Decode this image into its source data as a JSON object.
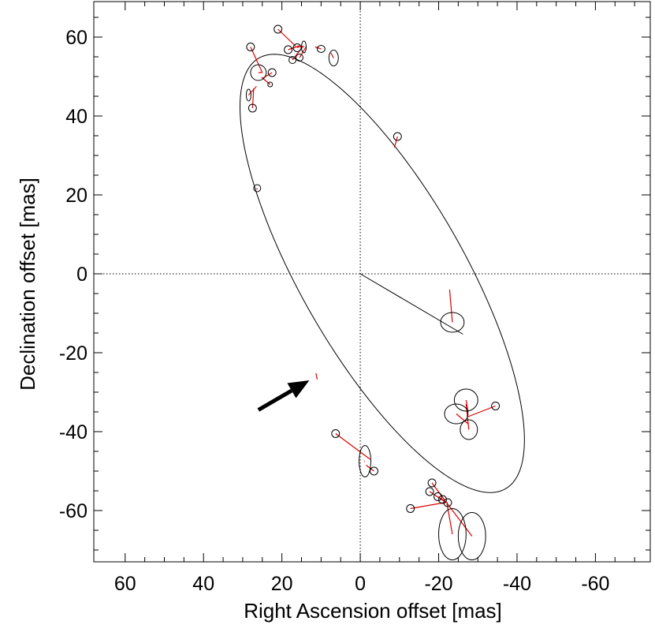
{
  "chart_data": {
    "type": "scatter",
    "title": "",
    "xlabel": "Right Ascension offset [mas]",
    "ylabel": "Declination offset [mas]",
    "xlim": [
      68,
      -74
    ],
    "ylim": [
      -73,
      69
    ],
    "x_reversed": true,
    "x_ticks": [
      60,
      40,
      20,
      0,
      -20,
      -40,
      -60
    ],
    "x_tick_labels": [
      "60",
      "40",
      "20",
      "0",
      "-20",
      "-40",
      "-60"
    ],
    "y_ticks": [
      60,
      40,
      20,
      0,
      -20,
      -40,
      -60
    ],
    "y_tick_labels": [
      "60",
      "40",
      "20",
      "0",
      "-20",
      "-40",
      "-60"
    ],
    "grid": false,
    "zero_lines": "dotted",
    "colors": {
      "orbit": "#000000",
      "residual": "#dd0000",
      "arrow": "#000000"
    },
    "orbit_ellipse": {
      "center": [
        -5.6,
        0.1
      ],
      "semi_major": 63.0,
      "semi_minor": 20.8,
      "position_angle_deg": 30.0
    },
    "primary_to_periastron_line": {
      "from": [
        0,
        0
      ],
      "to": [
        -26.2,
        -15.3
      ]
    },
    "observations": [
      {
        "x": 21.0,
        "y": 62.0,
        "model_x": 16.5,
        "model_y": 57.7,
        "ex": 1.0,
        "ey": 1.0
      },
      {
        "x": 18.4,
        "y": 56.8,
        "model_x": 15.5,
        "model_y": 57.8,
        "ex": 1.0,
        "ey": 1.0
      },
      {
        "x": 16.1,
        "y": 57.3,
        "model_x": 15.0,
        "model_y": 57.8,
        "ex": 1.0,
        "ey": 1.0
      },
      {
        "x": 14.4,
        "y": 57.5,
        "model_x": 14.8,
        "model_y": 57.7,
        "ex": 0.4,
        "ey": 1.5
      },
      {
        "x": 17.3,
        "y": 54.2,
        "model_x": 14.5,
        "model_y": 57.8,
        "ex": 0.9,
        "ey": 0.9
      },
      {
        "x": 15.5,
        "y": 54.8,
        "model_x": 13.8,
        "model_y": 57.6,
        "ex": 0.9,
        "ey": 0.9
      },
      {
        "x": 10.0,
        "y": 57.0,
        "model_x": 11.5,
        "model_y": 57.5,
        "ex": 1.0,
        "ey": 0.9
      },
      {
        "x": 6.8,
        "y": 54.7,
        "model_x": 7.5,
        "model_y": 56.0,
        "ex": 1.2,
        "ey": 2.0
      },
      {
        "x": 28.0,
        "y": 57.5,
        "model_x": 25.0,
        "model_y": 51.0,
        "ex": 1.0,
        "ey": 1.0
      },
      {
        "x": 26.0,
        "y": 51.0,
        "model_x": 25.0,
        "model_y": 51.0,
        "ex": 2.0,
        "ey": 2.0
      },
      {
        "x": 22.5,
        "y": 51.0,
        "model_x": 25.0,
        "model_y": 49.5,
        "ex": 1.0,
        "ey": 1.0
      },
      {
        "x": 23.0,
        "y": 48.0,
        "model_x": 25.2,
        "model_y": 49.8,
        "ex": 0.6,
        "ey": 0.6
      },
      {
        "x": 28.5,
        "y": 45.3,
        "model_x": 26.5,
        "model_y": 47.5,
        "ex": 0.5,
        "ey": 1.5
      },
      {
        "x": 27.5,
        "y": 42.0,
        "model_x": 27.2,
        "model_y": 47.0,
        "ex": 1.0,
        "ey": 1.0
      },
      {
        "x": -9.5,
        "y": 34.8,
        "model_x": -8.7,
        "model_y": 32.0,
        "ex": 1.0,
        "ey": 1.0
      },
      {
        "x": 26.3,
        "y": 21.7,
        "model_x": 26.4,
        "model_y": 21.4,
        "ex": 0.9,
        "ey": 0.9
      },
      {
        "x": -23.5,
        "y": -12.3,
        "model_x": -22.8,
        "model_y": -4.0,
        "ex": 3.0,
        "ey": 2.5
      },
      {
        "x": -27.0,
        "y": -32.0,
        "model_x": -27.5,
        "model_y": -35.0,
        "ex": 3.0,
        "ey": 2.8
      },
      {
        "x": -24.5,
        "y": -35.5,
        "model_x": -27.5,
        "model_y": -38.0,
        "ex": 3.0,
        "ey": 2.5
      },
      {
        "x": -27.7,
        "y": -39.5,
        "model_x": -27.0,
        "model_y": -33.0,
        "ex": 2.2,
        "ey": 2.5
      },
      {
        "x": -34.5,
        "y": -33.5,
        "model_x": -27.5,
        "model_y": -36.2,
        "ex": 1.0,
        "ey": 1.0
      },
      {
        "x": 6.3,
        "y": -40.5,
        "model_x": -2.5,
        "model_y": -47.0,
        "ex": 1.0,
        "ey": 1.0
      },
      {
        "x": -1.2,
        "y": -47.5,
        "model_x": -1.0,
        "model_y": -47.5,
        "ex": 1.5,
        "ey": 4.0
      },
      {
        "x": -3.5,
        "y": -50.0,
        "model_x": -1.5,
        "model_y": -48.5,
        "ex": 1.0,
        "ey": 1.0
      },
      {
        "x": -18.3,
        "y": -53.0,
        "model_x": -21.5,
        "model_y": -57.3,
        "ex": 1.0,
        "ey": 1.0
      },
      {
        "x": -17.7,
        "y": -55.2,
        "model_x": -21.2,
        "model_y": -57.5,
        "ex": 1.0,
        "ey": 1.0
      },
      {
        "x": -19.8,
        "y": -56.5,
        "model_x": -21.5,
        "model_y": -57.6,
        "ex": 1.0,
        "ey": 1.0
      },
      {
        "x": -21.0,
        "y": -57.2,
        "model_x": -21.8,
        "model_y": -57.8,
        "ex": 1.0,
        "ey": 1.0
      },
      {
        "x": -22.3,
        "y": -58.0,
        "model_x": -21.8,
        "model_y": -57.8,
        "ex": 1.0,
        "ey": 1.0
      },
      {
        "x": -12.8,
        "y": -59.5,
        "model_x": -22.0,
        "model_y": -57.9,
        "ex": 1.0,
        "ey": 1.0
      },
      {
        "x": -23.5,
        "y": -66.0,
        "model_x": -22.1,
        "model_y": -58.1,
        "ex": 3.5,
        "ey": 6.5
      },
      {
        "x": -28.5,
        "y": -66.5,
        "model_x": -22.1,
        "model_y": -58.1,
        "ex": 3.5,
        "ey": 6.0
      }
    ],
    "highlight_mark": {
      "from": [
        11.3,
        -25.2
      ],
      "to": [
        11.0,
        -26.8
      ]
    },
    "annotation_arrow": {
      "from": [
        26.0,
        -34.5
      ],
      "to": [
        13.0,
        -27.0
      ],
      "label": ""
    }
  }
}
